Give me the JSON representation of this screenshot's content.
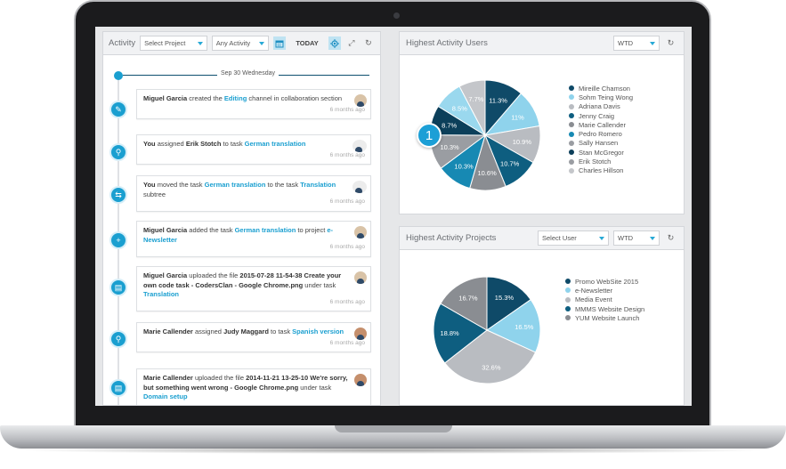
{
  "activity": {
    "title": "Activity",
    "project_select": "Select Project",
    "activity_select": "Any Activity",
    "today_label": "TODAY",
    "date": "Sep 30",
    "weekday": "Wednesday",
    "entries": [
      {
        "actor": "Miguel Garcia",
        "pre": " created the ",
        "link1": "Editing",
        "mid": " channel in collaboration section",
        "link2": "",
        "post": "",
        "ago": "6 months ago"
      },
      {
        "actor": "You",
        "pre": " assigned ",
        "link1": "",
        "bold": "Erik Stotch",
        "mid": " to task ",
        "link2": "German translation",
        "post": "",
        "ago": "6 months ago"
      },
      {
        "actor": "You",
        "pre": " moved the task ",
        "link1": "German translation",
        "mid": " to the task ",
        "link2": "Translation",
        "post": " subtree",
        "ago": "6 months ago"
      },
      {
        "actor": "Miguel Garcia",
        "pre": " added the task ",
        "link1": "German translation",
        "mid": " to project ",
        "link2": "e-Newsletter",
        "post": "",
        "ago": "6 months ago"
      },
      {
        "actor": "Miguel Garcia",
        "pre": " uploaded the file ",
        "bold": "2015-07-28 11-54-38 Create your own code task - CodersClan - Google Chrome.png",
        "mid": " under task ",
        "link2": "Translation",
        "post": "",
        "ago": "6 months ago"
      },
      {
        "actor": "Marie Callender",
        "pre": " assigned ",
        "bold": "Judy Maggard",
        "mid": " to task ",
        "link2": "Spanish version",
        "post": "",
        "ago": "6 months ago"
      },
      {
        "actor": "Marie Callender",
        "pre": " uploaded the file ",
        "bold": "2014-11-21 13-25-10 We're sorry, but something went wrong - Google Chrome.png",
        "mid": " under task ",
        "link2": "Domain setup",
        "post": "",
        "ago": "6 months ago"
      }
    ]
  },
  "users_panel": {
    "title": "Highest Activity Users",
    "period": "WTD",
    "legend": [
      "Mireille Chamson",
      "Sohm Teing Wong",
      "Adriana Davis",
      "Jenny Craig",
      "Marie Callender",
      "Pedro Romero",
      "Sally Hansen",
      "Stan McGregor",
      "Erik Stotch",
      "Charles Hillson"
    ],
    "slices": [
      {
        "label": "11.3%",
        "value": 11.3,
        "color": "#0f4a68"
      },
      {
        "label": "11%",
        "value": 11,
        "color": "#8fd3ec"
      },
      {
        "label": "10.9%",
        "value": 10.9,
        "color": "#b9bcc1"
      },
      {
        "label": "10.7%",
        "value": 10.7,
        "color": "#0e5e80"
      },
      {
        "label": "10.6%",
        "value": 10.6,
        "color": "#8a8d92"
      },
      {
        "label": "10.3%",
        "value": 10.3,
        "color": "#1789b3"
      },
      {
        "label": "10.3%",
        "value": 10.3,
        "color": "#9a9da2"
      },
      {
        "label": "8.7%",
        "value": 8.7,
        "color": "#0c3f5a"
      },
      {
        "label": "8.5%",
        "value": 8.5,
        "color": "#9ad8ee"
      },
      {
        "label": "7.7%",
        "value": 7.7,
        "color": "#c4c6ca"
      }
    ]
  },
  "projects_panel": {
    "title": "Highest Activity Projects",
    "user_select": "Select User",
    "period": "WTD",
    "legend": [
      "Promo WebSite 2015",
      "e-Newsletter",
      "Media Event",
      "MMMS Website Design",
      "YUM Website Launch"
    ],
    "slices": [
      {
        "label": "15.3%",
        "value": 15.3,
        "color": "#0f4a68"
      },
      {
        "label": "16.5%",
        "value": 16.5,
        "color": "#8fd3ec"
      },
      {
        "label": "32.6%",
        "value": 32.6,
        "color": "#b9bcc1"
      },
      {
        "label": "18.8%",
        "value": 18.8,
        "color": "#0e5e80"
      },
      {
        "label": "16.7%",
        "value": 16.7,
        "color": "#8a8d92"
      }
    ]
  },
  "badge_number": "1"
}
